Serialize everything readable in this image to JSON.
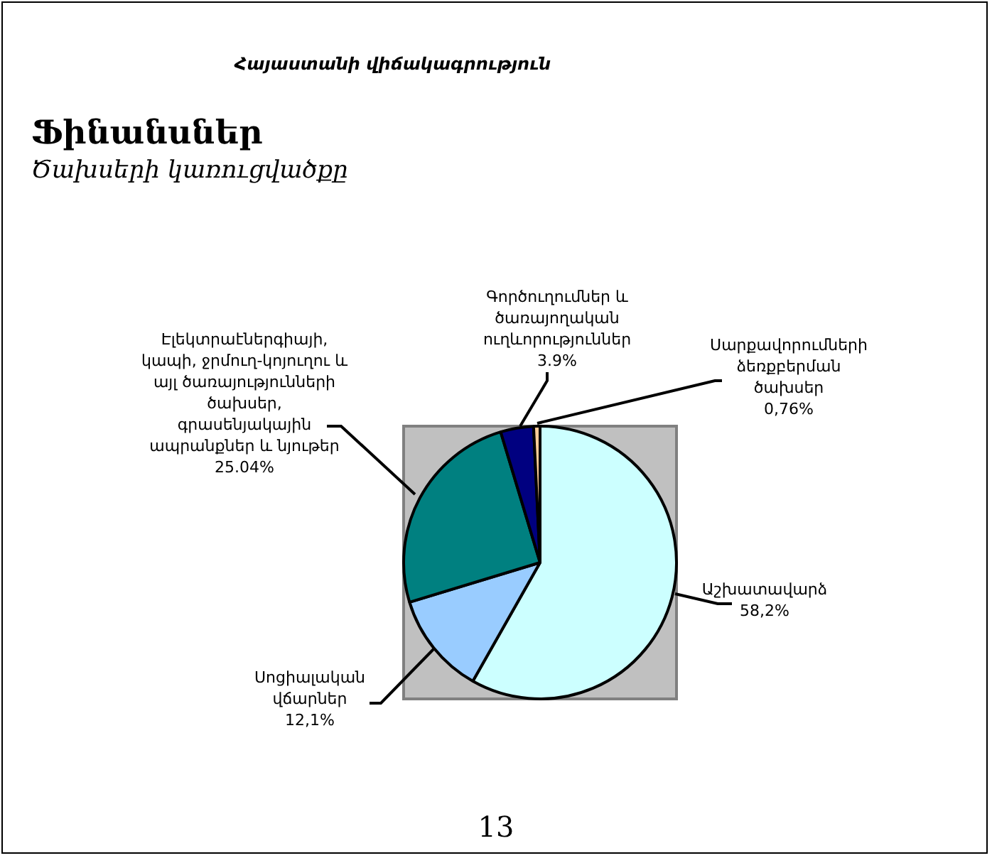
{
  "chart_data": {
    "type": "pie",
    "title": "Ֆինանսներ",
    "subtitle": "Ծախսերի կառուցվածքը",
    "categories": [
      "Աշխատավարձ",
      "Սոցիալական վճարներ",
      "Էլեկտրաէներգիայի, կապի, ջրմուղ-կոյուղու և այլ ծառայությունների ծախսեր, գրասենյակային ապրանքներ և նյութեր",
      "Գործուղումներ և ծառայողական ուղևորություններ",
      "Սարքավորումների ձեռքբերման ծախսեր"
    ],
    "values": [
      58.2,
      12.1,
      25.04,
      3.9,
      0.76
    ],
    "value_labels": [
      "58,2%",
      "12,1%",
      "25.04%",
      "3.9%",
      "0,76%"
    ],
    "colors": [
      "#ccffff",
      "#99ccff",
      "#008080",
      "#000080",
      "#ffcc99"
    ],
    "annotations": [
      "Հայաստանի վիճակագրություն",
      "13"
    ]
  }
}
